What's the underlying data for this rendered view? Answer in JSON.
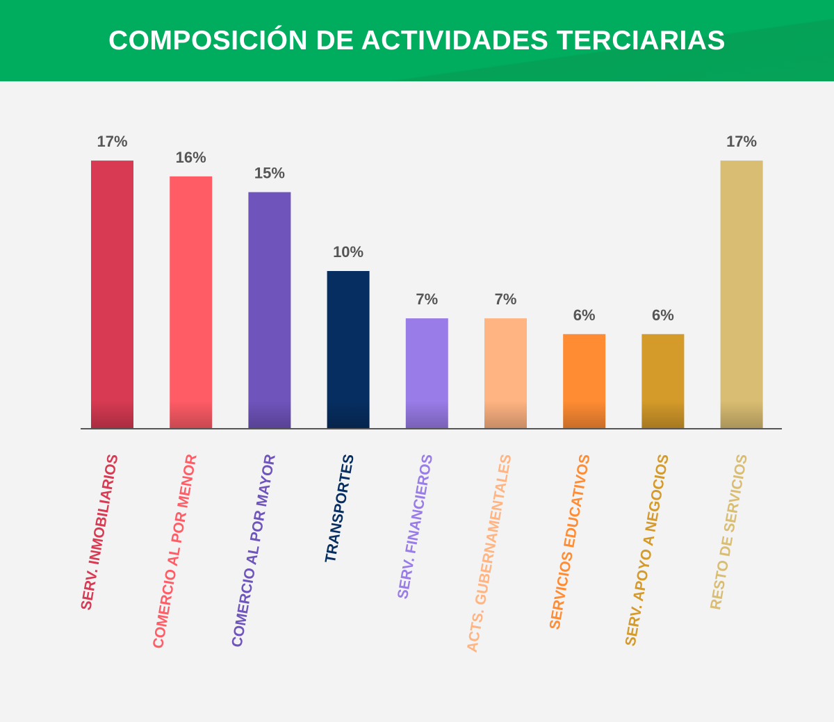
{
  "header": {
    "title": "COMPOSICIÓN DE ACTIVIDADES TERCIARIAS"
  },
  "colors": {
    "header_bg": "#00ad5f",
    "background": "#f3f3f3",
    "axis": "#555555"
  },
  "chart_data": {
    "type": "bar",
    "title": "COMPOSICIÓN DE ACTIVIDADES TERCIARIAS",
    "xlabel": "",
    "ylabel": "",
    "ylim": [
      0,
      18
    ],
    "grid": false,
    "categories": [
      "SERV. INMOBILIARIOS",
      "COMERCIO AL POR MENOR",
      "COMERCIO AL POR MAYOR",
      "TRANSPORTES",
      "SERV. FINANCIEROS",
      "ACTS. GUBERNAMENTALES",
      "SERVICIOS EDUCATIVOS",
      "SERV. APOYO A NEGOCIOS",
      "RESTO DE SERVICIOS"
    ],
    "values": [
      17,
      16,
      15,
      10,
      7,
      7,
      6,
      6,
      17
    ],
    "value_labels": [
      "17%",
      "16%",
      "15%",
      "10%",
      "7%",
      "7%",
      "6%",
      "6%",
      "17%"
    ],
    "bar_colors": [
      "#d73a52",
      "#ff5c66",
      "#6f54bc",
      "#072e61",
      "#9a7ce8",
      "#ffb482",
      "#ff8c33",
      "#d49a2a",
      "#d9bd72"
    ]
  }
}
